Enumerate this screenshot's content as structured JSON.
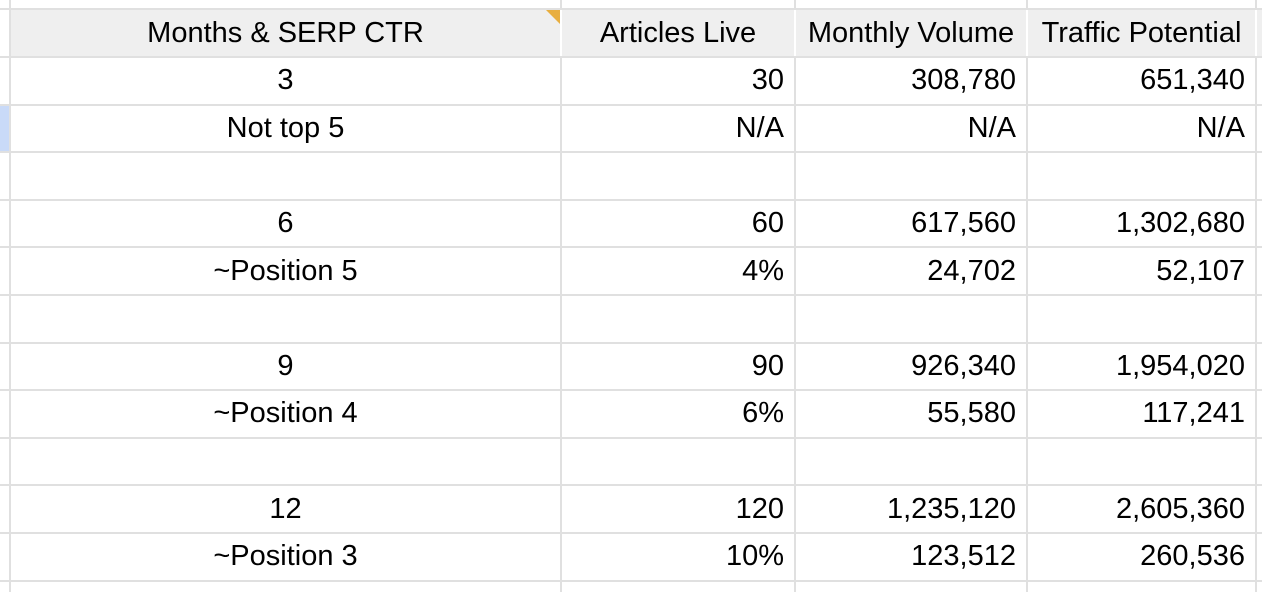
{
  "app": {
    "type": "spreadsheet-grid"
  },
  "colors": {
    "header_bg": "#efefef",
    "gridline": "#e0e0e0",
    "note_marker": "#E8AE3F",
    "highlight_cell": "#c9daf8",
    "text": "#000000",
    "background": "#ffffff"
  },
  "table": {
    "columns": [
      {
        "label": "Months & SERP CTR",
        "align": "center",
        "has_note_marker": true
      },
      {
        "label": "Articles Live",
        "align": "right",
        "has_note_marker": false
      },
      {
        "label": "Monthly Volume",
        "align": "right",
        "has_note_marker": false
      },
      {
        "label": "Traffic Potential",
        "align": "right",
        "has_note_marker": false
      }
    ],
    "rows": [
      {
        "cells": [
          "3",
          "30",
          "308,780",
          "651,340"
        ],
        "left_neighbor_highlighted": false
      },
      {
        "cells": [
          "Not top 5",
          "N/A",
          "N/A",
          "N/A"
        ],
        "left_neighbor_highlighted": true
      },
      {
        "cells": [
          "",
          "",
          "",
          ""
        ],
        "left_neighbor_highlighted": false
      },
      {
        "cells": [
          "6",
          "60",
          "617,560",
          "1,302,680"
        ],
        "left_neighbor_highlighted": false
      },
      {
        "cells": [
          "~Position 5",
          "4%",
          "24,702",
          "52,107"
        ],
        "left_neighbor_highlighted": false
      },
      {
        "cells": [
          "",
          "",
          "",
          ""
        ],
        "left_neighbor_highlighted": false
      },
      {
        "cells": [
          "9",
          "90",
          "926,340",
          "1,954,020"
        ],
        "left_neighbor_highlighted": false
      },
      {
        "cells": [
          "~Position 4",
          "6%",
          "55,580",
          "117,241"
        ],
        "left_neighbor_highlighted": false
      },
      {
        "cells": [
          "",
          "",
          "",
          ""
        ],
        "left_neighbor_highlighted": false
      },
      {
        "cells": [
          "12",
          "120",
          "1,235,120",
          "2,605,360"
        ],
        "left_neighbor_highlighted": false
      },
      {
        "cells": [
          "~Position 3",
          "10%",
          "123,512",
          "260,536"
        ],
        "left_neighbor_highlighted": false
      }
    ]
  }
}
